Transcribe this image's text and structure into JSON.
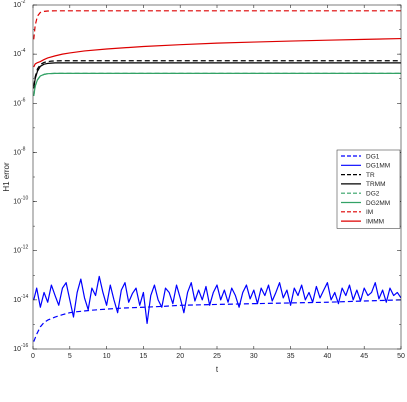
{
  "chart_data": {
    "type": "line",
    "title": "",
    "xlabel": "t",
    "ylabel": "H1 error",
    "xlim": [
      0,
      50
    ],
    "ylim": [
      1e-16,
      0.01
    ],
    "yscale": "log",
    "grid": false,
    "legend_position": "right",
    "x_ticks": [
      0,
      5,
      10,
      15,
      20,
      25,
      30,
      35,
      40,
      45,
      50
    ],
    "x_tick_labels": [
      "0",
      "5",
      "10",
      "15",
      "20",
      "25",
      "30",
      "35",
      "40",
      "45",
      "50"
    ],
    "y_ticks": [
      1e-16,
      1e-14,
      1e-12,
      1e-10,
      1e-08,
      1e-06,
      0.0001,
      0.01
    ],
    "y_tick_labels": [
      {
        "base": "10",
        "exp": "-16"
      },
      {
        "base": "10",
        "exp": "-14"
      },
      {
        "base": "10",
        "exp": "-12"
      },
      {
        "base": "10",
        "exp": "-10"
      },
      {
        "base": "10",
        "exp": "-8"
      },
      {
        "base": "10",
        "exp": "-6"
      },
      {
        "base": "10",
        "exp": "-4"
      },
      {
        "base": "10",
        "exp": "-2"
      }
    ],
    "series": [
      {
        "name": "DG1",
        "color": "#0000ff",
        "dash": "dashed",
        "x": [
          0.1,
          0.5,
          1,
          1.5,
          2,
          3,
          4,
          5,
          6,
          8,
          10,
          12,
          15,
          18,
          20,
          25,
          30,
          35,
          40,
          45,
          50
        ],
        "y": [
          2e-16,
          4e-16,
          8e-16,
          1.2e-15,
          1.5e-15,
          2e-15,
          2.5e-15,
          3e-15,
          3.3e-15,
          3.8e-15,
          4.2e-15,
          4.6e-15,
          5e-15,
          5.5e-15,
          6e-15,
          6.5e-15,
          7e-15,
          7.5e-15,
          8e-15,
          9e-15,
          1e-14
        ]
      },
      {
        "name": "DG1MM",
        "color": "#0000ff",
        "dash": "solid",
        "x": [
          0.1,
          0.5,
          1,
          1.5,
          2,
          2.5,
          3,
          3.5,
          4,
          4.5,
          5,
          5.5,
          6,
          6.5,
          7,
          7.5,
          8,
          8.5,
          9,
          9.5,
          10,
          10.5,
          11,
          11.5,
          12,
          12.5,
          13,
          13.5,
          14,
          14.5,
          15,
          15.5,
          16,
          16.5,
          17,
          17.5,
          18,
          18.5,
          19,
          19.5,
          20,
          20.5,
          21,
          21.5,
          22,
          22.5,
          23,
          23.5,
          24,
          24.5,
          25,
          25.5,
          26,
          26.5,
          27,
          27.5,
          28,
          28.5,
          29,
          29.5,
          30,
          30.5,
          31,
          31.5,
          32,
          32.5,
          33,
          33.5,
          34,
          34.5,
          35,
          35.5,
          36,
          36.5,
          37,
          37.5,
          38,
          38.5,
          39,
          39.5,
          40,
          40.5,
          41,
          41.5,
          42,
          42.5,
          43,
          43.5,
          44,
          44.5,
          45,
          45.5,
          46,
          46.5,
          47,
          47.5,
          48,
          48.5,
          49,
          49.5,
          50
        ],
        "y": [
          1e-14,
          3e-14,
          5e-15,
          2e-14,
          8e-15,
          4e-14,
          1.5e-14,
          6e-15,
          3e-14,
          5e-14,
          1e-14,
          2e-15,
          2e-14,
          7e-14,
          1.2e-14,
          4e-15,
          3e-14,
          1.5e-14,
          9e-14,
          2e-14,
          6e-15,
          4e-14,
          1e-14,
          3e-15,
          2.5e-14,
          5e-14,
          8e-15,
          1.8e-14,
          3e-14,
          6e-15,
          2e-14,
          1.1e-15,
          1.5e-14,
          4e-14,
          1e-14,
          5e-15,
          3e-14,
          2e-14,
          7e-15,
          4e-14,
          1.2e-14,
          3e-15,
          2e-14,
          5e-14,
          9e-15,
          2.5e-14,
          1e-14,
          3.5e-14,
          6e-15,
          2e-14,
          4e-14,
          1e-14,
          2.5e-14,
          8e-15,
          3e-14,
          1.5e-14,
          5e-15,
          2e-14,
          4e-14,
          1.1e-14,
          2.5e-14,
          7e-15,
          3e-14,
          1.5e-14,
          4e-14,
          9e-15,
          2e-14,
          5e-14,
          1.2e-14,
          2.5e-14,
          6e-15,
          3e-14,
          1.5e-14,
          4e-14,
          1e-14,
          2e-14,
          8e-15,
          3.5e-14,
          1.2e-14,
          2.5e-14,
          5e-14,
          1e-14,
          2e-14,
          7e-15,
          3e-14,
          1.5e-14,
          4e-14,
          1e-14,
          2.5e-14,
          9e-15,
          3e-14,
          1.5e-14,
          2e-14,
          5e-14,
          1.1e-14,
          2.5e-14,
          8e-15,
          3e-14,
          1.5e-14,
          2e-14,
          1.2e-14
        ]
      },
      {
        "name": "TR",
        "color": "#000000",
        "dash": "dashed",
        "x": [
          0.1,
          0.3,
          0.6,
          1,
          1.5,
          2,
          2.5,
          3,
          4,
          5,
          7,
          10,
          15,
          20,
          25,
          30,
          35,
          40,
          45,
          50
        ],
        "y": [
          5e-06,
          1.2e-05,
          2.5e-05,
          3.8e-05,
          4.6e-05,
          5e-05,
          5.2e-05,
          5.3e-05,
          5.4e-05,
          5.4e-05,
          5.4e-05,
          5.4e-05,
          5.4e-05,
          5.4e-05,
          5.4e-05,
          5.4e-05,
          5.4e-05,
          5.4e-05,
          5.4e-05,
          5.4e-05
        ]
      },
      {
        "name": "TRMM",
        "color": "#000000",
        "dash": "solid",
        "x": [
          0.1,
          0.3,
          0.6,
          1,
          1.5,
          2,
          2.5,
          3,
          4,
          5,
          7,
          10,
          15,
          20,
          25,
          30,
          35,
          40,
          45,
          50
        ],
        "y": [
          4e-06,
          1e-05,
          2e-05,
          3.2e-05,
          3.9e-05,
          4.2e-05,
          4.3e-05,
          4.4e-05,
          4.4e-05,
          4.4e-05,
          4.4e-05,
          4.4e-05,
          4.4e-05,
          4.4e-05,
          4.4e-05,
          4.4e-05,
          4.4e-05,
          4.4e-05,
          4.4e-05,
          4.4e-05
        ]
      },
      {
        "name": "DG2",
        "color": "#33a266",
        "dash": "dashed",
        "x": [
          0.1,
          0.3,
          0.6,
          1,
          1.5,
          2,
          3,
          4,
          5,
          10,
          20,
          30,
          40,
          50
        ],
        "y": [
          2e-06,
          5e-06,
          9e-06,
          1.3e-05,
          1.5e-05,
          1.6e-05,
          1.65e-05,
          1.65e-05,
          1.65e-05,
          1.65e-05,
          1.65e-05,
          1.65e-05,
          1.65e-05,
          1.65e-05
        ]
      },
      {
        "name": "DG2MM",
        "color": "#33a266",
        "dash": "solid",
        "x": [
          0.1,
          0.3,
          0.6,
          1,
          1.5,
          2,
          3,
          4,
          5,
          10,
          20,
          30,
          40,
          50
        ],
        "y": [
          2e-06,
          5e-06,
          9e-06,
          1.3e-05,
          1.5e-05,
          1.6e-05,
          1.65e-05,
          1.65e-05,
          1.65e-05,
          1.65e-05,
          1.65e-05,
          1.65e-05,
          1.65e-05,
          1.65e-05
        ]
      },
      {
        "name": "IM",
        "color": "#dd0000",
        "dash": "dashed",
        "x": [
          0.1,
          0.3,
          0.6,
          1,
          1.5,
          2,
          3,
          5,
          10,
          20,
          30,
          40,
          50
        ],
        "y": [
          0.0004,
          0.0015,
          0.0035,
          0.005,
          0.0055,
          0.0057,
          0.0058,
          0.0058,
          0.0058,
          0.0058,
          0.0058,
          0.0058,
          0.0058
        ]
      },
      {
        "name": "IMMM",
        "color": "#dd0000",
        "dash": "solid",
        "x": [
          0.1,
          0.3,
          0.6,
          1,
          1.5,
          2,
          3,
          4,
          5,
          7,
          10,
          15,
          20,
          25,
          30,
          35,
          40,
          45,
          50
        ],
        "y": [
          3e-05,
          4e-05,
          4.5e-05,
          5e-05,
          6e-05,
          7e-05,
          8.5e-05,
          0.0001,
          0.000112,
          0.000135,
          0.000162,
          0.000205,
          0.000242,
          0.00028,
          0.00031,
          0.00034,
          0.00037,
          0.0004,
          0.00043
        ]
      }
    ]
  }
}
